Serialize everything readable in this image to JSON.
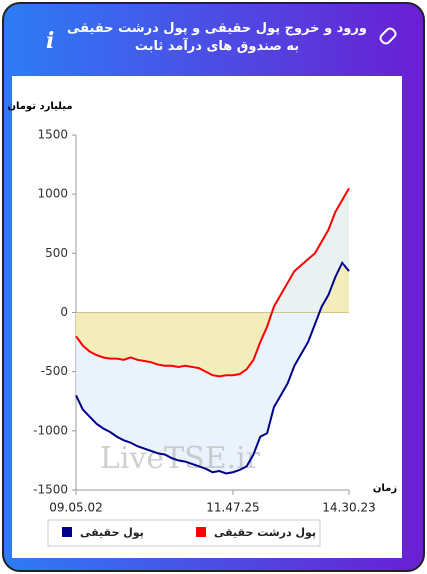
{
  "chart_data": {
    "type": "line",
    "title": "ورود و خروج پول حقیقی و پول درشت حقیقی به صندوق های درآمد ثابت",
    "y_label": "میلیارد تومان",
    "x_label": "زمان",
    "watermark": "LiveTSE.ir",
    "categories": [
      "09.05.02",
      null,
      null,
      null,
      null,
      null,
      null,
      null,
      null,
      null,
      null,
      null,
      null,
      null,
      null,
      null,
      null,
      null,
      null,
      null,
      null,
      null,
      null,
      "11.47.25",
      null,
      null,
      null,
      null,
      null,
      null,
      null,
      null,
      null,
      null,
      null,
      null,
      null,
      null,
      null,
      null,
      "14.30.23"
    ],
    "series": [
      {
        "name": "پول حقیقی",
        "color": "#00008b",
        "values": [
          -700,
          -820,
          -880,
          -940,
          -980,
          -1010,
          -1050,
          -1080,
          -1100,
          -1130,
          -1150,
          -1170,
          -1190,
          -1200,
          -1230,
          -1250,
          -1260,
          -1280,
          -1300,
          -1320,
          -1350,
          -1340,
          -1360,
          -1350,
          -1330,
          -1300,
          -1200,
          -1050,
          -1020,
          -800,
          -700,
          -600,
          -450,
          -350,
          -250,
          -100,
          50,
          150,
          300,
          420,
          350
        ]
      },
      {
        "name": "پول درشت حقیقی",
        "color": "#ff0000",
        "values": [
          -200,
          -280,
          -330,
          -360,
          -380,
          -390,
          -390,
          -400,
          -380,
          -400,
          -410,
          -420,
          -440,
          -450,
          -450,
          -460,
          -450,
          -460,
          -470,
          -500,
          -530,
          -540,
          -530,
          -530,
          -520,
          -480,
          -400,
          -250,
          -120,
          50,
          150,
          250,
          350,
          400,
          450,
          500,
          600,
          700,
          850,
          950,
          1050
        ]
      }
    ],
    "ylim": [
      -1500,
      1500
    ],
    "yticks": [
      -1500,
      -1000,
      -500,
      0,
      500,
      1000,
      1500
    ]
  }
}
